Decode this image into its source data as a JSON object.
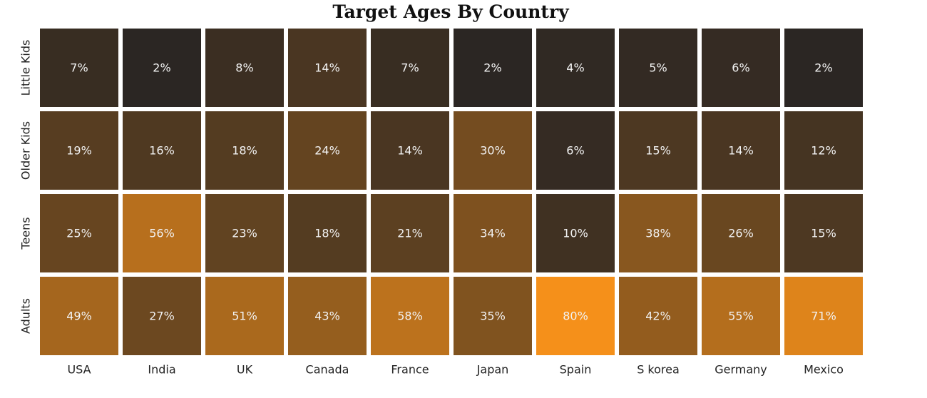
{
  "chart_data": {
    "type": "heatmap",
    "title": "Target Ages By Country",
    "xlabel": "",
    "ylabel": "",
    "x_categories": [
      "USA",
      "India",
      "UK",
      "Canada",
      "France",
      "Japan",
      "Spain",
      "S korea",
      "Germany",
      "Mexico"
    ],
    "y_categories": [
      "Little Kids",
      "Older Kids",
      "Teens",
      "Adults"
    ],
    "values": [
      [
        7,
        2,
        8,
        14,
        7,
        2,
        4,
        5,
        6,
        2
      ],
      [
        19,
        16,
        18,
        24,
        14,
        30,
        6,
        15,
        14,
        12
      ],
      [
        25,
        56,
        23,
        18,
        21,
        34,
        10,
        38,
        26,
        15
      ],
      [
        49,
        27,
        51,
        43,
        58,
        35,
        80,
        42,
        55,
        71
      ]
    ],
    "value_format": "percent",
    "color_scale": {
      "low": "#2b2623",
      "high": "#f5901a"
    },
    "grid": false,
    "legend": "none"
  }
}
